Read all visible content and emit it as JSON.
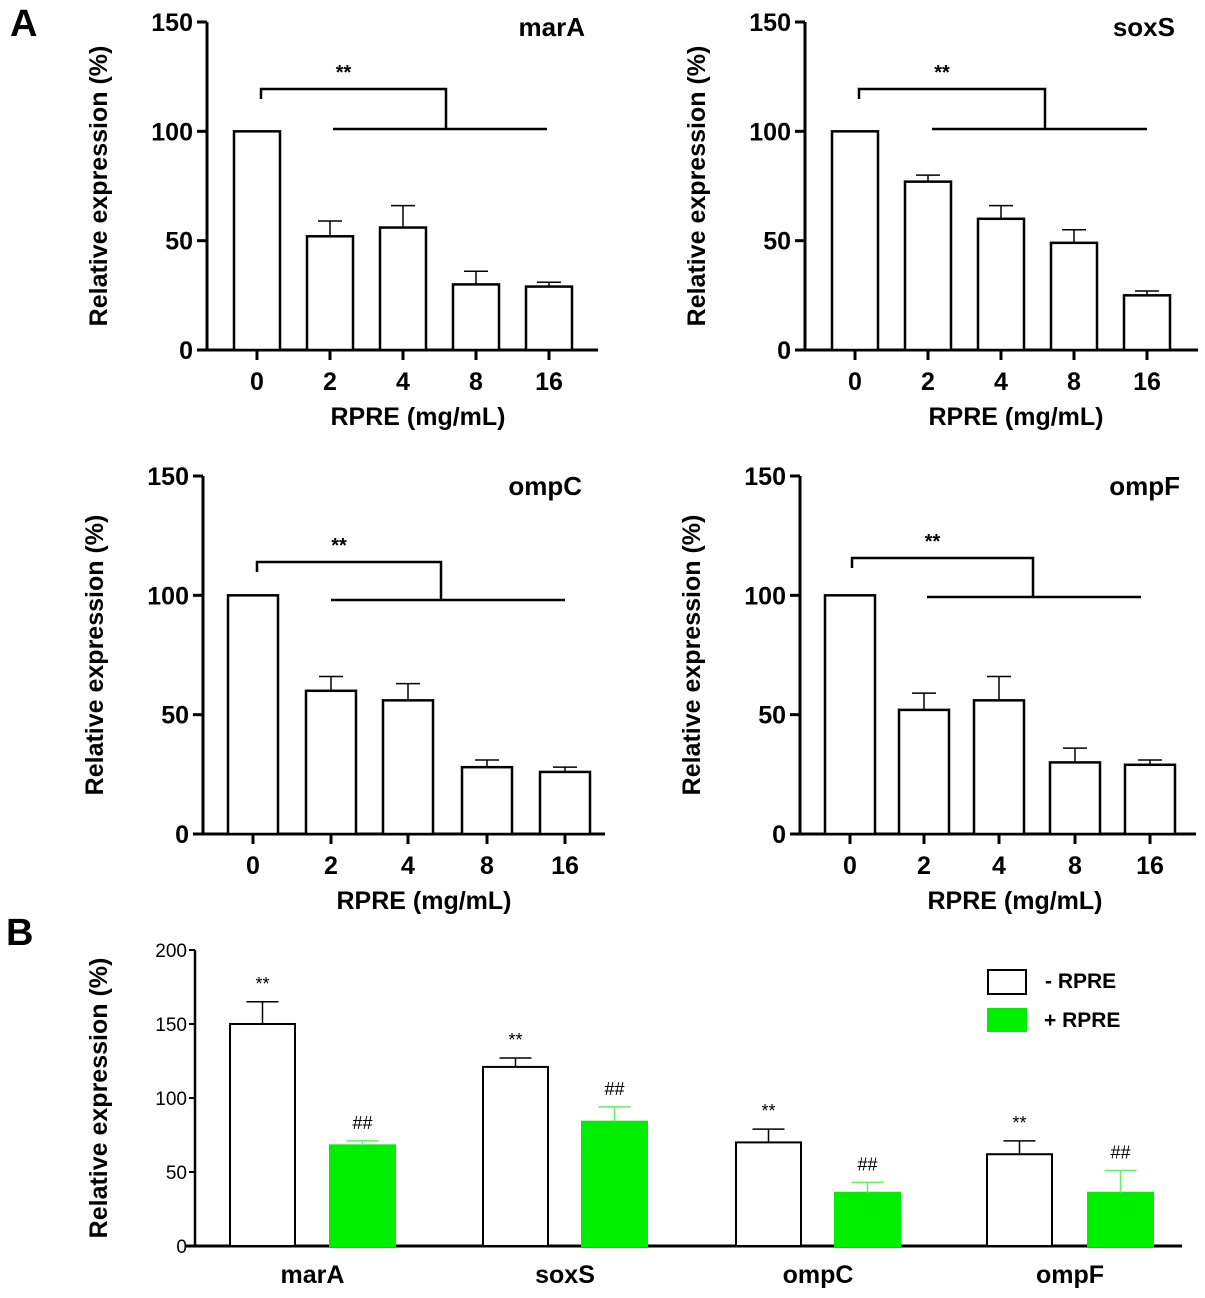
{
  "panel_labels": [
    "A",
    "B"
  ],
  "chart_data": [
    {
      "type": "bar",
      "title": "marA",
      "xlabel": "RPRE (mg/mL)",
      "ylabel": "Relative expression (%)",
      "ylim": [
        0,
        150
      ],
      "yticks": [
        0,
        50,
        100,
        150
      ],
      "categories": [
        "0",
        "2",
        "4",
        "8",
        "16"
      ],
      "values": [
        100,
        52,
        56,
        30,
        29
      ],
      "errors": [
        0,
        7,
        10,
        6,
        2
      ],
      "significance": "**"
    },
    {
      "type": "bar",
      "title": "soxS",
      "xlabel": "RPRE (mg/mL)",
      "ylabel": "Relative expression (%)",
      "ylim": [
        0,
        150
      ],
      "yticks": [
        0,
        50,
        100,
        150
      ],
      "categories": [
        "0",
        "2",
        "4",
        "8",
        "16"
      ],
      "values": [
        100,
        77,
        60,
        49,
        25
      ],
      "errors": [
        0,
        3,
        6,
        6,
        2
      ],
      "significance": "**"
    },
    {
      "type": "bar",
      "title": "ompC",
      "xlabel": "RPRE (mg/mL)",
      "ylabel": "Relative expression (%)",
      "ylim": [
        0,
        150
      ],
      "yticks": [
        0,
        50,
        100,
        150
      ],
      "categories": [
        "0",
        "2",
        "4",
        "8",
        "16"
      ],
      "values": [
        100,
        60,
        56,
        28,
        26
      ],
      "errors": [
        0,
        6,
        7,
        3,
        2
      ],
      "significance": "**"
    },
    {
      "type": "bar",
      "title": "ompF",
      "xlabel": "RPRE (mg/mL)",
      "ylabel": "Relative expression (%)",
      "ylim": [
        0,
        150
      ],
      "yticks": [
        0,
        50,
        100,
        150
      ],
      "categories": [
        "0",
        "2",
        "4",
        "8",
        "16"
      ],
      "values": [
        100,
        52,
        56,
        30,
        29
      ],
      "errors": [
        0,
        7,
        10,
        6,
        2
      ],
      "significance": "**"
    },
    {
      "type": "bar",
      "title": "",
      "xlabel": "",
      "ylabel": "Relative expression (%)",
      "ylim": [
        0,
        200
      ],
      "yticks": [
        0,
        50,
        100,
        150,
        200
      ],
      "categories": [
        "marA",
        "soxS",
        "ompC",
        "ompF"
      ],
      "series": [
        {
          "name": "- RPRE",
          "color": "#ffffff",
          "values": [
            150,
            121,
            70,
            62
          ],
          "errors": [
            15,
            6,
            9,
            9
          ],
          "marker": "**"
        },
        {
          "name": "+ RPRE",
          "color": "#00ee00",
          "values": [
            68,
            84,
            36,
            36
          ],
          "errors": [
            3,
            10,
            7,
            15
          ],
          "marker": "##"
        }
      ],
      "legend": "top-right"
    }
  ]
}
